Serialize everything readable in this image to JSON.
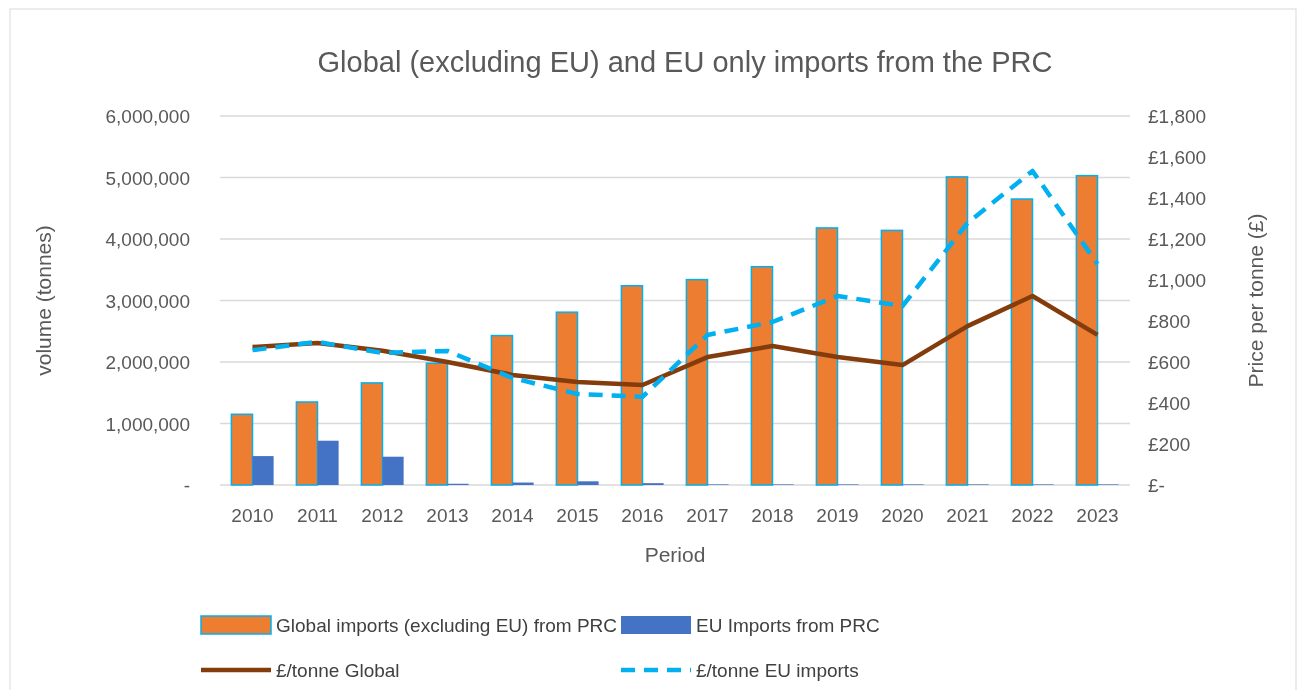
{
  "chart_data": {
    "type": "bar",
    "title": "Global (excluding EU) and EU only imports from the PRC",
    "xlabel": "Period",
    "ylabel": "volume (tonnes)",
    "y2label": "Price per tonne (£)",
    "categories": [
      "2010",
      "2011",
      "2012",
      "2013",
      "2014",
      "2015",
      "2016",
      "2017",
      "2018",
      "2019",
      "2020",
      "2021",
      "2022",
      "2023"
    ],
    "series": [
      {
        "name": "Global imports (excluding EU) from PRC",
        "color": "#ed7d31",
        "values": [
          1150000,
          1350000,
          1660000,
          1980000,
          2430000,
          2810000,
          3240000,
          3340000,
          3550000,
          4180000,
          4140000,
          5010000,
          4650000,
          5030000
        ]
      },
      {
        "name": "EU Imports from PRC",
        "color": "#4472c4",
        "values": [
          470000,
          720000,
          460000,
          20000,
          40000,
          60000,
          30000,
          10000,
          10000,
          10000,
          10000,
          10000,
          10000,
          10000
        ]
      },
      {
        "name": "£/tonne Global",
        "type": "line",
        "axis": "y2",
        "color": "#843c0c",
        "line_style": "solid",
        "values": [
          673,
          693,
          655,
          600,
          537,
          502,
          488,
          624,
          678,
          624,
          585,
          775,
          922,
          732
        ]
      },
      {
        "name": "£/tonne EU imports",
        "type": "line",
        "axis": "y2",
        "color": "#00b0f0",
        "line_style": "dashed",
        "values": [
          658,
          698,
          644,
          654,
          522,
          444,
          430,
          732,
          795,
          922,
          873,
          1278,
          1532,
          1078
        ]
      }
    ],
    "ylim": [
      0,
      6000000
    ],
    "yticks": [
      {
        "value": 0,
        "label": "-"
      },
      {
        "value": 1000000,
        "label": "1,000,000"
      },
      {
        "value": 2000000,
        "label": "2,000,000"
      },
      {
        "value": 3000000,
        "label": "3,000,000"
      },
      {
        "value": 4000000,
        "label": "4,000,000"
      },
      {
        "value": 5000000,
        "label": "5,000,000"
      },
      {
        "value": 6000000,
        "label": "6,000,000"
      }
    ],
    "y2lim": [
      0,
      1800
    ],
    "y2ticks": [
      {
        "value": 0,
        "label": "£-"
      },
      {
        "value": 200,
        "label": "£200"
      },
      {
        "value": 400,
        "label": "£400"
      },
      {
        "value": 600,
        "label": "£600"
      },
      {
        "value": 800,
        "label": "£800"
      },
      {
        "value": 1000,
        "label": "£1,000"
      },
      {
        "value": 1200,
        "label": "£1,200"
      },
      {
        "value": 1400,
        "label": "£1,400"
      },
      {
        "value": 1600,
        "label": "£1,600"
      },
      {
        "value": 1800,
        "label": "£1,800"
      }
    ],
    "grid": "y",
    "legend": "bottom"
  }
}
